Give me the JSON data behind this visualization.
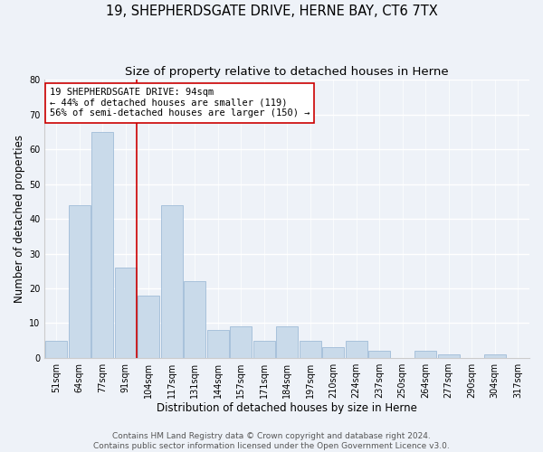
{
  "title": "19, SHEPHERDSGATE DRIVE, HERNE BAY, CT6 7TX",
  "subtitle": "Size of property relative to detached houses in Herne",
  "xlabel": "Distribution of detached houses by size in Herne",
  "ylabel": "Number of detached properties",
  "bar_labels": [
    "51sqm",
    "64sqm",
    "77sqm",
    "91sqm",
    "104sqm",
    "117sqm",
    "131sqm",
    "144sqm",
    "157sqm",
    "171sqm",
    "184sqm",
    "197sqm",
    "210sqm",
    "224sqm",
    "237sqm",
    "250sqm",
    "264sqm",
    "277sqm",
    "290sqm",
    "304sqm",
    "317sqm"
  ],
  "bar_values": [
    5,
    44,
    65,
    26,
    18,
    44,
    22,
    8,
    9,
    5,
    9,
    5,
    3,
    5,
    2,
    0,
    2,
    1,
    0,
    1,
    0
  ],
  "bar_color": "#c9daea",
  "bar_edge_color": "#a0bcd8",
  "vline_x_index": 3,
  "vline_color": "#cc0000",
  "ylim": [
    0,
    80
  ],
  "yticks": [
    0,
    10,
    20,
    30,
    40,
    50,
    60,
    70,
    80
  ],
  "annotation_title": "19 SHEPHERDSGATE DRIVE: 94sqm",
  "annotation_line1": "← 44% of detached houses are smaller (119)",
  "annotation_line2": "56% of semi-detached houses are larger (150) →",
  "annotation_box_color": "#ffffff",
  "annotation_border_color": "#cc0000",
  "footer1": "Contains HM Land Registry data © Crown copyright and database right 2024.",
  "footer2": "Contains public sector information licensed under the Open Government Licence v3.0.",
  "background_color": "#eef2f8",
  "grid_color": "#ffffff",
  "title_fontsize": 10.5,
  "subtitle_fontsize": 9.5,
  "axis_label_fontsize": 8.5,
  "tick_fontsize": 7,
  "footer_fontsize": 6.5,
  "annotation_fontsize": 7.5
}
